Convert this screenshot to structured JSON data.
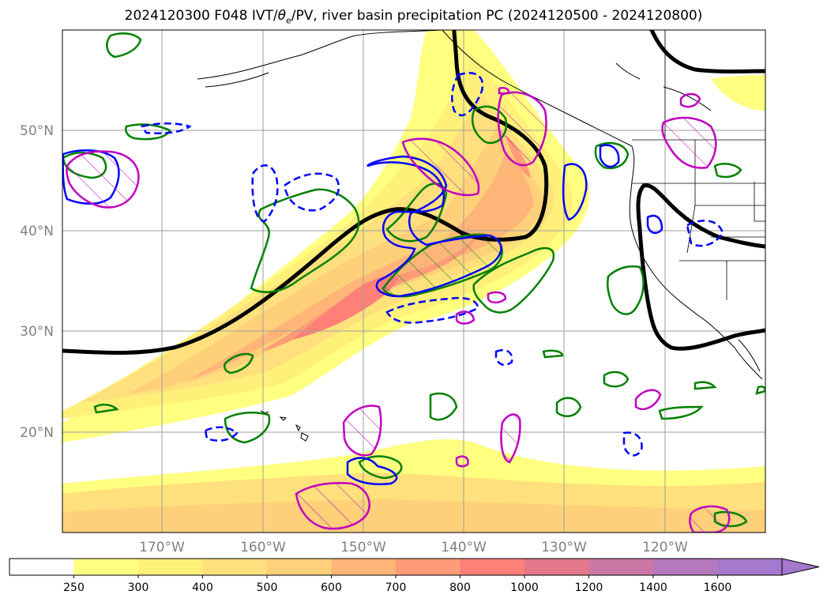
{
  "title": {
    "part1": "2024120300 F048 IVT/",
    "theta": "θ",
    "theta_sub": "e",
    "part2": "/PV, river basin precipitation PC (2024120500 - 2024120800)"
  },
  "lat_labels": [
    "50°N",
    "40°N",
    "30°N",
    "20°N"
  ],
  "lon_labels": [
    "170°W",
    "160°W",
    "150°W",
    "140°W",
    "130°W",
    "120°W"
  ],
  "colorbar": {
    "ticks": [
      "250",
      "300",
      "400",
      "500",
      "600",
      "700",
      "800",
      "1000",
      "1200",
      "1400",
      "1600"
    ],
    "colors": [
      "#ffffff",
      "#ffff80",
      "#fff07a",
      "#ffe07c",
      "#ffd07a",
      "#ffb478",
      "#ff9c78",
      "#ff8078",
      "#e2788a",
      "#cc78a6",
      "#b478bc",
      "#a478cc"
    ]
  },
  "legend_colors": {
    "contour_black": "#000000",
    "contour_blue": "#0000ff",
    "contour_green": "#008000",
    "contour_magenta": "#c000c0"
  }
}
